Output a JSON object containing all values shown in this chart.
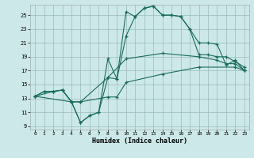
{
  "xlabel": "Humidex (Indice chaleur)",
  "bg_color": "#cce8e8",
  "line_color": "#1a6b5a",
  "grid_color": "#99bbbb",
  "xlim": [
    -0.5,
    23.5
  ],
  "ylim": [
    8.5,
    26.5
  ],
  "xticks": [
    0,
    1,
    2,
    3,
    4,
    5,
    6,
    7,
    8,
    9,
    10,
    11,
    12,
    13,
    14,
    15,
    16,
    17,
    18,
    19,
    20,
    21,
    22,
    23
  ],
  "yticks": [
    9,
    11,
    13,
    15,
    17,
    19,
    21,
    23,
    25
  ],
  "line1_x": [
    0,
    1,
    2,
    3,
    4,
    5,
    6,
    7,
    8,
    9,
    10,
    11,
    12,
    13,
    14,
    15,
    16,
    17,
    18,
    19,
    20,
    21,
    22,
    23
  ],
  "line1_y": [
    13.3,
    14.0,
    14.0,
    14.2,
    12.5,
    9.5,
    10.5,
    11.0,
    18.7,
    15.8,
    25.5,
    24.8,
    26.0,
    26.3,
    25.0,
    25.0,
    24.8,
    23.0,
    21.0,
    21.0,
    20.8,
    17.8,
    18.5,
    17.0
  ],
  "line2_x": [
    0,
    1,
    2,
    3,
    4,
    5,
    6,
    7,
    8,
    9,
    10,
    11,
    12,
    13,
    14,
    15,
    16,
    17,
    18,
    19,
    20,
    21,
    22,
    23
  ],
  "line2_y": [
    13.3,
    14.0,
    14.0,
    14.2,
    12.5,
    9.5,
    10.5,
    11.0,
    16.0,
    15.8,
    22.0,
    24.8,
    26.0,
    26.3,
    25.0,
    25.0,
    24.8,
    23.0,
    19.3,
    19.3,
    19.0,
    19.0,
    18.3,
    17.5
  ],
  "line3_x": [
    0,
    2,
    3,
    4,
    5,
    8,
    10,
    14,
    18,
    20,
    21,
    22,
    23
  ],
  "line3_y": [
    13.3,
    14.0,
    14.2,
    12.5,
    12.5,
    16.0,
    18.7,
    19.5,
    19.0,
    18.5,
    18.0,
    18.0,
    17.0
  ],
  "line4_x": [
    0,
    4,
    5,
    8,
    9,
    10,
    14,
    18,
    22,
    23
  ],
  "line4_y": [
    13.3,
    12.5,
    12.5,
    13.2,
    13.2,
    15.3,
    16.5,
    17.5,
    17.5,
    17.0
  ]
}
